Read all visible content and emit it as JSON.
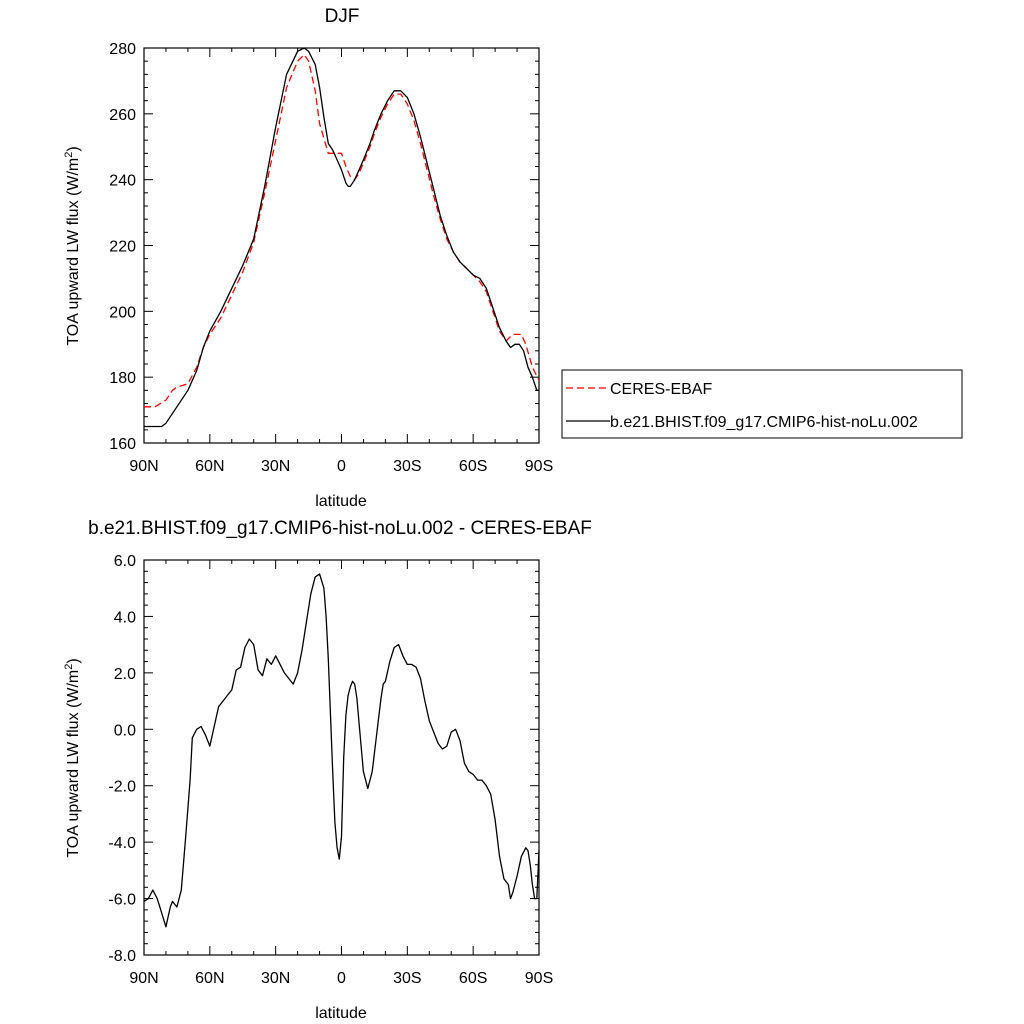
{
  "chart_data": [
    {
      "type": "line",
      "title": "DJF",
      "xlabel": "latitude",
      "ylabel": "TOA upward LW flux (W/m",
      "ylabel_sup": "2",
      "ylabel_close": ")",
      "x_tick_labels": [
        "90N",
        "60N",
        "30N",
        "0",
        "30S",
        "60S",
        "90S"
      ],
      "x_ticks": [
        90,
        60,
        30,
        0,
        -30,
        -60,
        -90
      ],
      "y_ticks": [
        160,
        180,
        200,
        220,
        240,
        260,
        280
      ],
      "y_tick_labels": [
        "160",
        "180",
        "200",
        "220",
        "240",
        "260",
        "280"
      ],
      "xlim": [
        90,
        -90
      ],
      "ylim": [
        160,
        280
      ],
      "legend": {
        "placement": "right",
        "entries": [
          "CERES-EBAF",
          "b.e21.BHIST.f09_g17.CMIP6-hist-noLu.002"
        ]
      },
      "series": [
        {
          "name": "CERES-EBAF",
          "color": "#ff0000",
          "dash": "dashed",
          "x": [
            90,
            85,
            80,
            77,
            75,
            70,
            66,
            63,
            60,
            55,
            50,
            45,
            40,
            35,
            30,
            25,
            20,
            17,
            15,
            12,
            10,
            6,
            4,
            2,
            0,
            -2,
            -4,
            -6,
            -8,
            -10,
            -13,
            -15,
            -18,
            -21,
            -24,
            -27,
            -30,
            -33,
            -36,
            -39,
            -42,
            -45,
            -48,
            -51,
            -54,
            -57,
            -60,
            -63,
            -66,
            -69,
            -72,
            -75,
            -78,
            -80,
            -82,
            -84,
            -87,
            -90
          ],
          "y": [
            171,
            171,
            173,
            176,
            177,
            178,
            183,
            189,
            193,
            198,
            205,
            212,
            221,
            236,
            252,
            268,
            276,
            278,
            276,
            267,
            257,
            248,
            248,
            248,
            248,
            244,
            241,
            240,
            242,
            245,
            250,
            254,
            259,
            263,
            266,
            266,
            263,
            258,
            251,
            243,
            235,
            228,
            222,
            218,
            215,
            213,
            211,
            209,
            206,
            200,
            194,
            191,
            193,
            193,
            193,
            190,
            183,
            179
          ]
        },
        {
          "name": "b.e21.BHIST.f09_g17.CMIP6-hist-noLu.002",
          "color": "#000000",
          "dash": "solid",
          "x": [
            90,
            85,
            82,
            80,
            78,
            75,
            70,
            66,
            63,
            60,
            55,
            50,
            45,
            40,
            35,
            30,
            25,
            20,
            17,
            15,
            12,
            10,
            8,
            6,
            4,
            2,
            0,
            -2,
            -3,
            -4,
            -6,
            -8,
            -10,
            -13,
            -15,
            -18,
            -21,
            -24,
            -27,
            -30,
            -33,
            -36,
            -39,
            -42,
            -45,
            -48,
            -51,
            -54,
            -57,
            -60,
            -63,
            -66,
            -69,
            -72,
            -75,
            -77,
            -79,
            -81,
            -83,
            -85,
            -87,
            -89,
            -90
          ],
          "y": [
            165,
            165,
            165,
            166,
            168,
            171,
            176,
            182,
            189,
            194,
            200,
            207,
            214,
            222,
            238,
            256,
            272,
            279,
            280,
            279,
            275,
            268,
            259,
            251,
            249,
            246,
            243,
            239,
            238,
            238,
            240,
            243,
            246,
            251,
            255,
            260,
            264,
            267,
            267,
            265,
            260,
            253,
            245,
            237,
            229,
            223,
            218,
            215,
            213,
            211,
            210,
            207,
            201,
            195,
            191,
            189,
            190,
            190,
            188,
            183,
            180,
            176,
            176
          ]
        }
      ]
    },
    {
      "type": "line",
      "title": "b.e21.BHIST.f09_g17.CMIP6-hist-noLu.002 - CERES-EBAF",
      "xlabel": "latitude",
      "ylabel": "TOA upward LW flux (W/m",
      "ylabel_sup": "2",
      "ylabel_close": ")",
      "x_tick_labels": [
        "90N",
        "60N",
        "30N",
        "0",
        "30S",
        "60S",
        "90S"
      ],
      "x_ticks": [
        90,
        60,
        30,
        0,
        -30,
        -60,
        -90
      ],
      "y_ticks": [
        -8,
        -6,
        -4,
        -2,
        0,
        2,
        4,
        6
      ],
      "y_tick_labels": [
        "-8.0",
        "-6.0",
        "-4.0",
        "-2.0",
        "0.0",
        "2.0",
        "4.0",
        "6.0"
      ],
      "xlim": [
        90,
        -90
      ],
      "ylim": [
        -8,
        6
      ],
      "series": [
        {
          "name": "",
          "color": "#000000",
          "dash": "solid",
          "x": [
            90,
            88,
            86,
            84,
            82,
            80,
            78,
            77,
            75,
            73,
            71,
            69,
            68,
            66,
            64,
            62,
            60,
            58,
            56,
            54,
            52,
            50,
            48,
            46,
            44,
            42,
            40,
            38,
            36,
            34,
            32,
            30,
            28,
            26,
            24,
            22,
            20,
            18,
            16,
            14,
            12,
            10,
            8,
            7,
            6,
            5,
            4,
            3,
            2,
            1,
            0,
            -1,
            -2,
            -3,
            -4,
            -5,
            -6,
            -7,
            -8,
            -10,
            -12,
            -14,
            -16,
            -18,
            -19,
            -20,
            -22,
            -24,
            -26,
            -28,
            -30,
            -32,
            -34,
            -36,
            -38,
            -40,
            -42,
            -44,
            -46,
            -48,
            -50,
            -52,
            -54,
            -56,
            -58,
            -60,
            -62,
            -64,
            -66,
            -68,
            -70,
            -72,
            -74,
            -76,
            -77,
            -78,
            -80,
            -82,
            -84,
            -85,
            -86,
            -87,
            -88,
            -89,
            -90
          ],
          "y": [
            -6.1,
            -6.0,
            -5.7,
            -6.0,
            -6.5,
            -7.0,
            -6.3,
            -6.1,
            -6.3,
            -5.7,
            -3.8,
            -1.8,
            -0.3,
            0.0,
            0.1,
            -0.2,
            -0.6,
            0.1,
            0.8,
            1.0,
            1.2,
            1.4,
            2.1,
            2.2,
            2.9,
            3.2,
            3.0,
            2.1,
            1.9,
            2.5,
            2.3,
            2.6,
            2.3,
            2.0,
            1.8,
            1.6,
            2.0,
            2.8,
            3.8,
            4.8,
            5.4,
            5.5,
            5.0,
            4.0,
            2.5,
            0.5,
            -1.5,
            -3.3,
            -4.2,
            -4.6,
            -3.8,
            -1.0,
            0.5,
            1.2,
            1.5,
            1.7,
            1.6,
            1.1,
            0.2,
            -1.5,
            -2.1,
            -1.5,
            -0.2,
            1.1,
            1.6,
            1.7,
            2.4,
            2.9,
            3.0,
            2.6,
            2.3,
            2.3,
            2.2,
            1.8,
            1.0,
            0.3,
            -0.1,
            -0.5,
            -0.7,
            -0.6,
            -0.1,
            0.0,
            -0.4,
            -1.2,
            -1.5,
            -1.6,
            -1.8,
            -1.8,
            -2.0,
            -2.3,
            -3.2,
            -4.5,
            -5.3,
            -5.5,
            -6.0,
            -5.8,
            -5.2,
            -4.5,
            -4.2,
            -4.3,
            -4.8,
            -5.5,
            -6.0,
            -6.0,
            -4.3
          ]
        }
      ]
    }
  ]
}
